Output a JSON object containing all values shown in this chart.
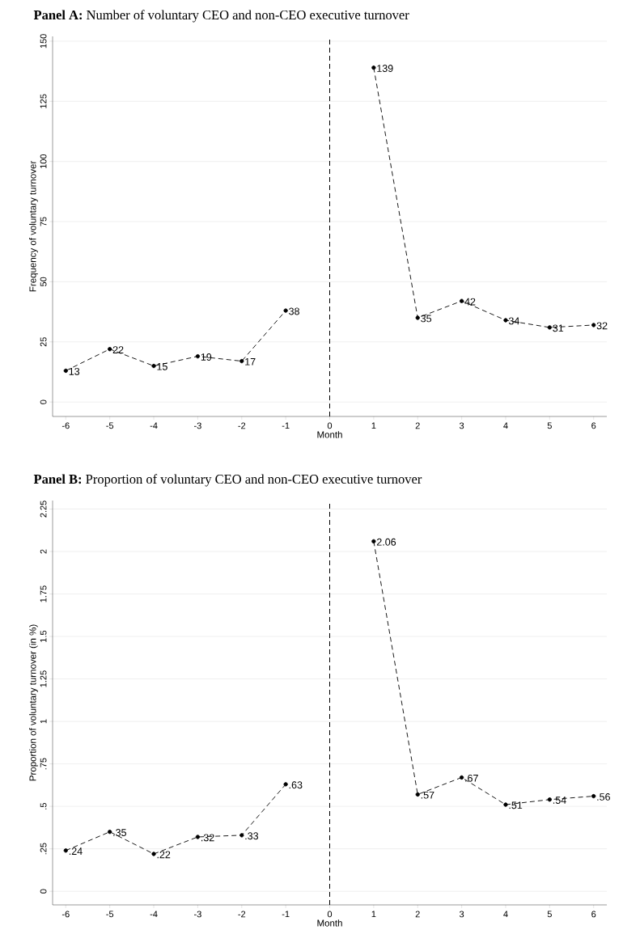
{
  "chart_data": [
    {
      "type": "line",
      "title": "**Panel A:** Number of voluntary CEO and non-CEO executive turnover",
      "xlabel": "Month",
      "ylabel": "Frequency of voluntary turnover",
      "xlim": [
        -6.3,
        6.3
      ],
      "xticks": [
        -6,
        -5,
        -4,
        -3,
        -2,
        -1,
        0,
        1,
        2,
        3,
        4,
        5,
        6
      ],
      "ylim": [
        -6,
        152
      ],
      "yticks": [
        0,
        25,
        50,
        75,
        100,
        125,
        150
      ],
      "grid": "y",
      "marker": "circle",
      "line_style": "dashed",
      "data_labels": true,
      "ref_lines": [
        {
          "axis": "x",
          "value": 0,
          "color": "#000000",
          "line_style": "dashed"
        }
      ],
      "series": [
        {
          "color": "#000000",
          "x": [
            -6,
            -5,
            -4,
            -3,
            -2,
            -1
          ],
          "values": [
            13,
            22,
            15,
            19,
            17,
            38
          ]
        },
        {
          "color": "#000000",
          "x": [
            1,
            2,
            3,
            4,
            5,
            6
          ],
          "values": [
            139,
            35,
            42,
            34,
            31,
            32
          ]
        }
      ]
    },
    {
      "type": "line",
      "title": "**Panel B:** Proportion of voluntary CEO and non-CEO executive turnover",
      "xlabel": "Month",
      "ylabel": "Proportion of voluntary turnover (in %)",
      "xlim": [
        -6.3,
        6.3
      ],
      "xticks": [
        -6,
        -5,
        -4,
        -3,
        -2,
        -1,
        0,
        1,
        2,
        3,
        4,
        5,
        6
      ],
      "ylim": [
        -0.08,
        2.3
      ],
      "yticks": [
        0,
        {
          "value": 0.25,
          "label": ".25"
        },
        {
          "value": 0.5,
          "label": ".5"
        },
        {
          "value": 0.75,
          "label": ".75"
        },
        1,
        1.25,
        1.5,
        1.75,
        2,
        2.25
      ],
      "grid": "y",
      "marker": "circle",
      "line_style": "dashed",
      "ref_lines": [
        {
          "axis": "x",
          "value": 0,
          "color": "#000000",
          "line_style": "dashed"
        }
      ],
      "series": [
        {
          "color": "#000000",
          "x": [
            -6,
            -5,
            -4,
            -3,
            -2,
            -1
          ],
          "values": [
            0.24,
            0.35,
            0.22,
            0.32,
            0.33,
            0.63
          ],
          "value_labels": [
            ".24",
            ".35",
            ".22",
            ".32",
            ".33",
            ".63"
          ]
        },
        {
          "color": "#000000",
          "x": [
            1,
            2,
            3,
            4,
            5,
            6
          ],
          "values": [
            2.06,
            0.57,
            0.67,
            0.51,
            0.54,
            0.56
          ],
          "value_labels": [
            "2.06",
            ".57",
            ".67",
            ".51",
            ".54",
            ".56"
          ]
        }
      ]
    }
  ]
}
